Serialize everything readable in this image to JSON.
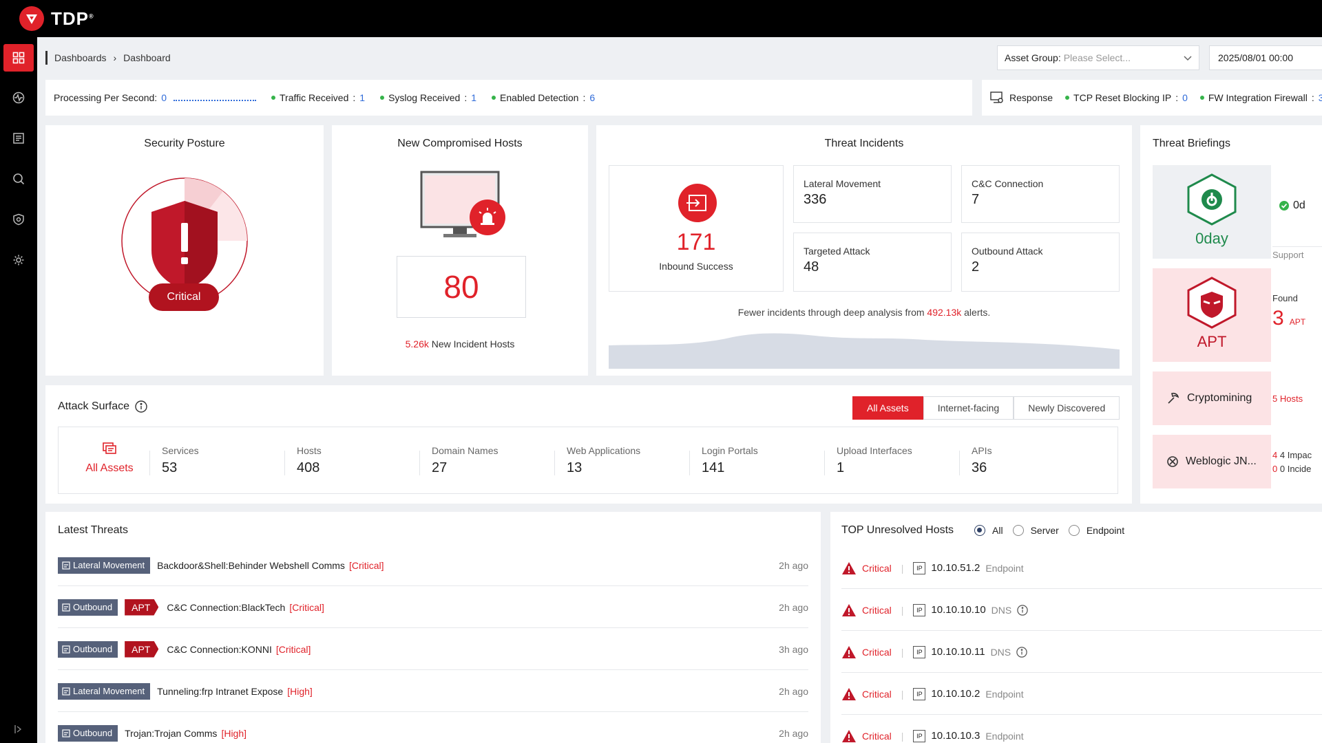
{
  "app": {
    "name": "TDP",
    "mark": "®"
  },
  "breadcrumb": {
    "root": "Dashboards",
    "current": "Dashboard"
  },
  "filters": {
    "asset_group_label": "Asset Group:",
    "asset_group_placeholder": "Please Select...",
    "date": "2025/08/01 00:00"
  },
  "stats": {
    "pps_label": "Processing Per Second:",
    "pps_value": "0",
    "traffic_label": "Traffic Received",
    "traffic_value": "1",
    "syslog_label": "Syslog Received",
    "syslog_value": "1",
    "detection_label": "Enabled Detection",
    "detection_value": "6",
    "response_label": "Response",
    "tcp_label": "TCP Reset Blocking IP",
    "tcp_value": "0",
    "fw_label": "FW Integration Firewall",
    "fw_value": "3"
  },
  "security_posture": {
    "title": "Security Posture",
    "status": "Critical"
  },
  "compromised_hosts": {
    "title": "New Compromised Hosts",
    "count": "80",
    "incident_value": "5.26k",
    "incident_label": "New Incident Hosts"
  },
  "threat_incidents": {
    "title": "Threat Incidents",
    "inbound_value": "171",
    "inbound_label": "Inbound Success",
    "lateral_label": "Lateral Movement",
    "lateral_value": "336",
    "cc_label": "C&C Connection",
    "cc_value": "7",
    "targeted_label": "Targeted Attack",
    "targeted_value": "48",
    "outbound_label": "Outbound Attack",
    "outbound_value": "2",
    "note_prefix": "Fewer incidents through deep analysis from",
    "note_value": "492.13k",
    "note_suffix": "alerts."
  },
  "briefings": {
    "title": "Threat Briefings",
    "oday_label": "0day",
    "oday_right": "0d",
    "oday_support": "Support",
    "apt_label": "APT",
    "apt_found": "Found",
    "apt_count": "3",
    "apt_unit": "APT",
    "crypto_label": "Cryptomining",
    "crypto_hosts": "5 Hosts",
    "weblogic_label": "Weblogic JN...",
    "weblogic_impact": "4 Impac",
    "weblogic_incid": "0 Incide"
  },
  "attack_surface": {
    "title": "Attack Surface",
    "tabs": [
      "All Assets",
      "Internet-facing",
      "Newly Discovered"
    ],
    "all_label": "All Assets",
    "metrics": [
      {
        "label": "Services",
        "value": "53"
      },
      {
        "label": "Hosts",
        "value": "408"
      },
      {
        "label": "Domain Names",
        "value": "27"
      },
      {
        "label": "Web Applications",
        "value": "13"
      },
      {
        "label": "Login Portals",
        "value": "141"
      },
      {
        "label": "Upload Interfaces",
        "value": "1"
      },
      {
        "label": "APIs",
        "value": "36"
      }
    ]
  },
  "latest_threats": {
    "title": "Latest Threats",
    "rows": [
      {
        "tag": "Lateral Movement",
        "apt": "",
        "name": "Backdoor&Shell:Behinder Webshell Comms",
        "severity": "[Critical]",
        "time": "2h ago"
      },
      {
        "tag": "Outbound",
        "apt": "APT",
        "name": "C&C Connection:BlackTech",
        "severity": "[Critical]",
        "time": "2h ago"
      },
      {
        "tag": "Outbound",
        "apt": "APT",
        "name": "C&C Connection:KONNI",
        "severity": "[Critical]",
        "time": "3h ago"
      },
      {
        "tag": "Lateral Movement",
        "apt": "",
        "name": "Tunneling:frp Intranet Expose",
        "severity": "[High]",
        "time": "2h ago"
      },
      {
        "tag": "Outbound",
        "apt": "",
        "name": "Trojan:Trojan Comms",
        "severity": "[High]",
        "time": "2h ago"
      }
    ]
  },
  "unresolved_hosts": {
    "title": "TOP Unresolved Hosts",
    "filters": [
      "All",
      "Server",
      "Endpoint"
    ],
    "rows": [
      {
        "severity": "Critical",
        "ip": "10.10.51.2",
        "type": "Endpoint"
      },
      {
        "severity": "Critical",
        "ip": "10.10.10.10",
        "type": "DNS"
      },
      {
        "severity": "Critical",
        "ip": "10.10.10.11",
        "type": "DNS"
      },
      {
        "severity": "Critical",
        "ip": "10.10.10.2",
        "type": "Endpoint"
      },
      {
        "severity": "Critical",
        "ip": "10.10.10.3",
        "type": "Endpoint"
      }
    ]
  },
  "colors": {
    "accent": "#e0222a",
    "dark_red": "#b1131f",
    "link": "#2f6bd9",
    "ok": "#35b34a"
  }
}
